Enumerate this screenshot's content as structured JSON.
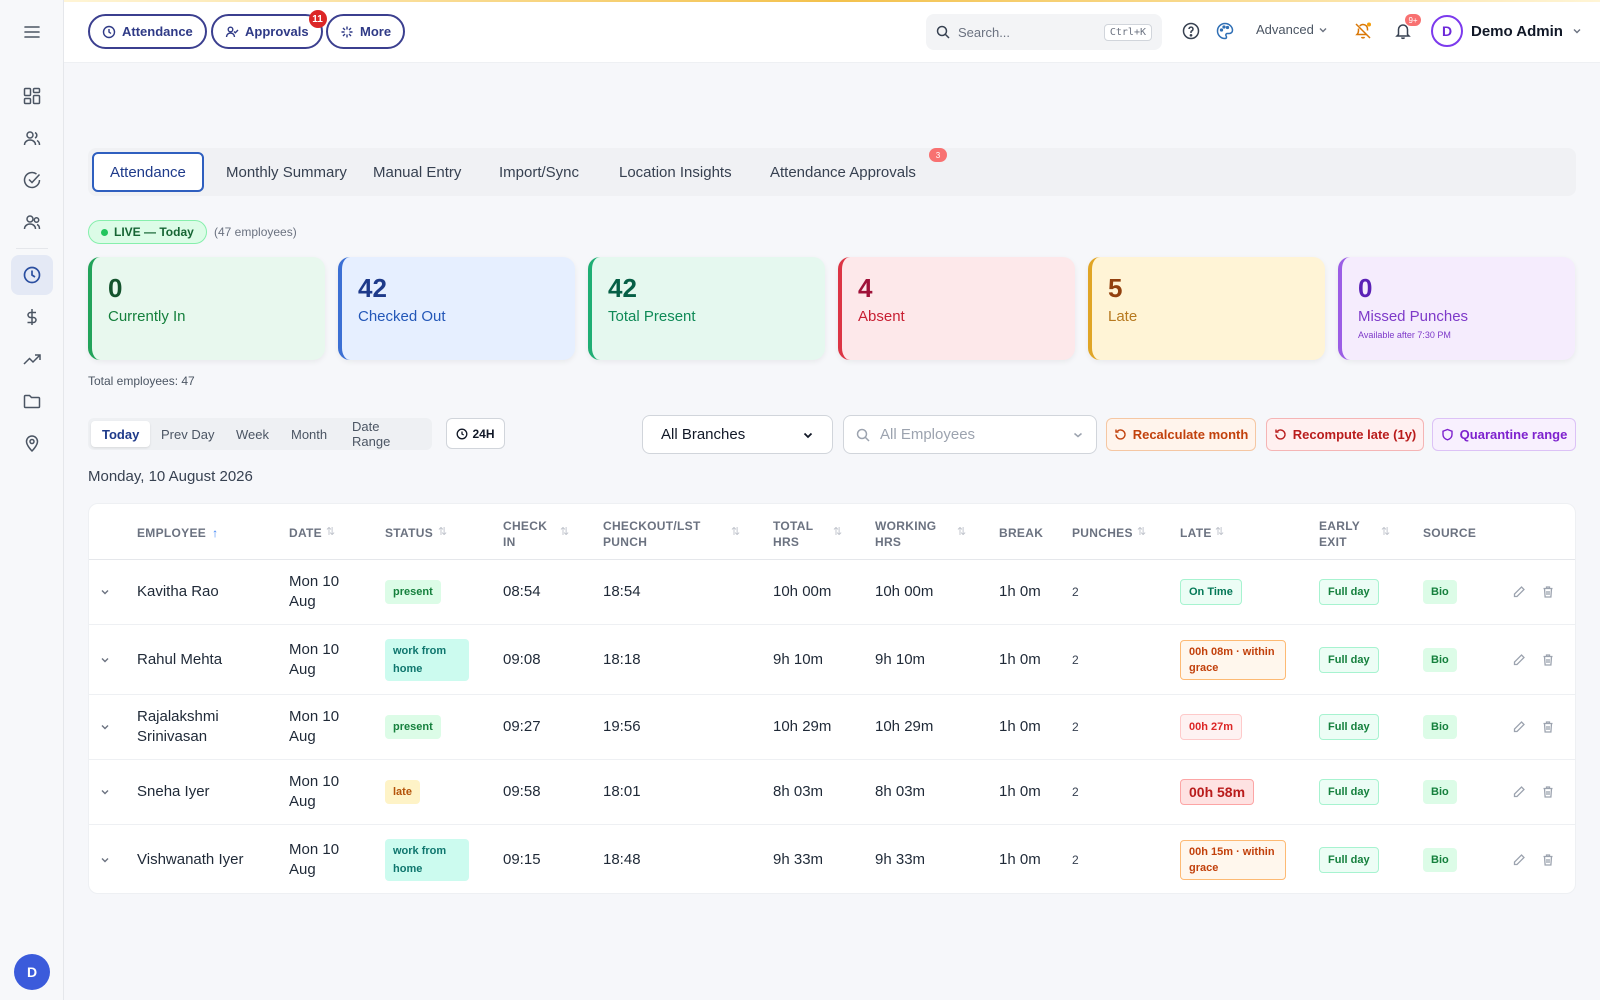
{
  "header": {
    "quick": [
      {
        "label": "Attendance",
        "icon": "clock-icon"
      },
      {
        "label": "Approvals",
        "icon": "user-check-icon",
        "badge": "11"
      },
      {
        "label": "More",
        "icon": "sparkle-icon"
      }
    ],
    "search_placeholder": "Search...",
    "search_shortcut": "Ctrl+K",
    "mode_label": "Advanced",
    "notif_badge": "9+",
    "user_initial": "D",
    "user_name": "Demo Admin"
  },
  "sidebar": {
    "items": [
      "dashboard-icon",
      "users-icon",
      "check-circle-icon",
      "team-icon",
      "clock-icon",
      "dollar-icon",
      "trend-icon",
      "folder-icon",
      "map-pin-icon"
    ],
    "active": "clock-icon",
    "avatar_initial": "D"
  },
  "tabs": {
    "items": [
      "Attendance",
      "Monthly Summary",
      "Manual Entry",
      "Import/Sync",
      "Location Insights",
      "Attendance Approvals"
    ],
    "active": "Attendance",
    "approvals_badge": "3"
  },
  "live": {
    "label": "LIVE — Today",
    "count_text": "(47 employees)"
  },
  "cards": [
    {
      "value": "0",
      "label": "Currently In",
      "note": "",
      "accent": "#22a35a",
      "bg": "#e8f8ee",
      "color": "#15803d",
      "num_color": "#14532d"
    },
    {
      "value": "42",
      "label": "Checked Out",
      "note": "",
      "accent": "#3b6fd4",
      "bg": "#e6efff",
      "color": "#2357b8",
      "num_color": "#1e3a8a"
    },
    {
      "value": "42",
      "label": "Total Present",
      "note": "",
      "accent": "#1fae74",
      "bg": "#e5f8ef",
      "color": "#0f8a57",
      "num_color": "#065f46"
    },
    {
      "value": "4",
      "label": "Absent",
      "note": "",
      "accent": "#dc3545",
      "bg": "#fde8ea",
      "color": "#c81e32",
      "num_color": "#9f1239"
    },
    {
      "value": "5",
      "label": "Late",
      "note": "",
      "accent": "#e0a526",
      "bg": "#fff4d6",
      "color": "#b7791f",
      "num_color": "#92400e"
    },
    {
      "value": "0",
      "label": "Missed Punches",
      "note": "Available after 7:30 PM",
      "accent": "#9b5de5",
      "bg": "#f5ecfd",
      "color": "#7e3ac9",
      "num_color": "#5b21b6"
    }
  ],
  "total_employees": "Total employees: 47",
  "filters": {
    "ranges": [
      "Today",
      "Prev Day",
      "Week",
      "Month",
      "Date Range"
    ],
    "active_range": "Today",
    "clock_format": "24H",
    "branch": "All Branches",
    "employee_placeholder": "All Employees",
    "actions": [
      "Recalculate month",
      "Recompute late (1y)",
      "Quarantine range"
    ]
  },
  "date_label": "Monday, 10 August 2026",
  "table": {
    "columns": [
      "EMPLOYEE",
      "DATE",
      "STATUS",
      "CHECK IN",
      "CHECKOUT/LST PUNCH",
      "TOTAL HRS",
      "WORKING HRS",
      "BREAK",
      "PUNCHES",
      "LATE",
      "EARLY EXIT",
      "SOURCE"
    ],
    "rows": [
      {
        "employee": "Kavitha Rao",
        "date": "Mon 10 Aug",
        "status": "present",
        "check_in": "08:54",
        "checkout": "18:54",
        "total": "10h 00m",
        "working": "10h 00m",
        "break": "1h 0m",
        "punches": "2",
        "late": "On Time",
        "late_kind": "ontime",
        "early": "Full day",
        "source": "Bio"
      },
      {
        "employee": "Rahul Mehta",
        "date": "Mon 10 Aug",
        "status": "work from home",
        "check_in": "09:08",
        "checkout": "18:18",
        "total": "9h 10m",
        "working": "9h 10m",
        "break": "1h 0m",
        "punches": "2",
        "late": "00h 08m · within grace",
        "late_kind": "grace",
        "early": "Full day",
        "source": "Bio"
      },
      {
        "employee": "Rajalakshmi Srinivasan",
        "date": "Mon 10 Aug",
        "status": "present",
        "check_in": "09:27",
        "checkout": "19:56",
        "total": "10h 29m",
        "working": "10h 29m",
        "break": "1h 0m",
        "punches": "2",
        "late": "00h 27m",
        "late_kind": "late",
        "early": "Full day",
        "source": "Bio"
      },
      {
        "employee": "Sneha Iyer",
        "date": "Mon 10 Aug",
        "status": "late",
        "check_in": "09:58",
        "checkout": "18:01",
        "total": "8h 03m",
        "working": "8h 03m",
        "break": "1h 0m",
        "punches": "2",
        "late": "00h 58m",
        "late_kind": "severe",
        "early": "Full day",
        "source": "Bio"
      },
      {
        "employee": "Vishwanath Iyer",
        "date": "Mon 10 Aug",
        "status": "work from home",
        "check_in": "09:15",
        "checkout": "18:48",
        "total": "9h 33m",
        "working": "9h 33m",
        "break": "1h 0m",
        "punches": "2",
        "late": "00h 15m · within grace",
        "late_kind": "grace",
        "early": "Full day",
        "source": "Bio"
      }
    ]
  }
}
